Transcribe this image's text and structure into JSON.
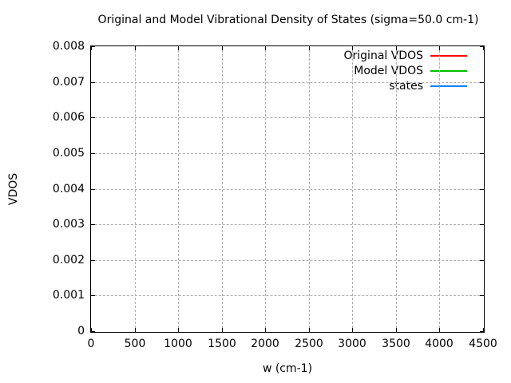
{
  "chart_data": {
    "type": "line",
    "title": "Original and Model Vibrational Density of States (sigma=50.0 cm-1)",
    "xlabel": "w (cm-1)",
    "ylabel": "VDOS",
    "xlim": [
      0,
      4500
    ],
    "ylim": [
      0,
      0.008
    ],
    "xticks": {
      "values": [
        0,
        500,
        1000,
        1500,
        2000,
        2500,
        3000,
        3500,
        4000,
        4500
      ],
      "labels": [
        "0",
        "500",
        "1000",
        "1500",
        "2000",
        "2500",
        "3000",
        "3500",
        "4000",
        "4500"
      ]
    },
    "yticks": {
      "values": [
        0,
        0.001,
        0.002,
        0.003,
        0.004,
        0.005,
        0.006,
        0.007,
        0.008
      ],
      "labels": [
        "0",
        "0.001",
        "0.002",
        "0.003",
        "0.004",
        "0.005",
        "0.006",
        "0.007",
        "0.008"
      ]
    },
    "grid": true,
    "grid_style": "dashed",
    "legend_position": "top-right-inside",
    "series": [
      {
        "name": "Original VDOS",
        "color": "#ff0000",
        "values": []
      },
      {
        "name": "Model VDOS",
        "color": "#00c000",
        "values": []
      },
      {
        "name": "states",
        "color": "#0080ff",
        "values": []
      }
    ],
    "colors": {
      "frame": "#000000",
      "grid": "#b0b0b0",
      "background": "#ffffff"
    }
  }
}
